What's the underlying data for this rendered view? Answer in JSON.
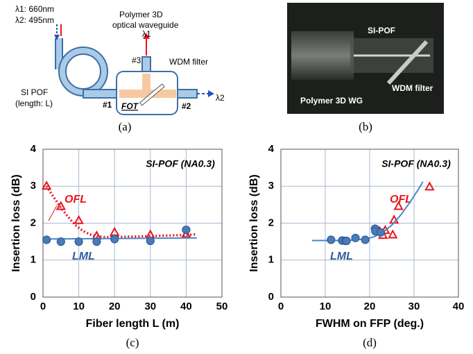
{
  "panels": {
    "a": {
      "label": "(a)",
      "wavelength1": "λ1: 660nm",
      "wavelength2": "λ2: 495nm",
      "waveguide_line1": "Polymer 3D",
      "waveguide_line2": "optical waveguide",
      "port3": "#3",
      "output1": "λ1",
      "wdm": "WDM filter",
      "pof": "SI POF",
      "length": "(length: L)",
      "port1": "#1",
      "fot": "FOT",
      "port2": "#2",
      "output2": "λ2"
    },
    "b": {
      "label": "(b)",
      "pof": "SI-POF",
      "wdm": "WDM filter",
      "wg": "Polymer 3D WG"
    }
  },
  "chart_data": [
    {
      "type": "scatter",
      "panel_label": "(c)",
      "annotation": "SI-POF (NA0.3)",
      "xlabel": "Fiber length  L (m)",
      "ylabel": "Insertion loss (dB)",
      "xlim": [
        0,
        50
      ],
      "xticks": [
        0,
        10,
        20,
        30,
        40,
        50
      ],
      "ylim": [
        0,
        4
      ],
      "yticks": [
        0,
        1,
        2,
        3,
        4
      ],
      "grid": true,
      "series": [
        {
          "name": "OFL",
          "color": "#e8141c",
          "marker": "triangle",
          "x": [
            1,
            5,
            10,
            15,
            20,
            30,
            40
          ],
          "values": [
            3.0,
            2.45,
            2.07,
            1.65,
            1.75,
            1.68,
            1.7
          ],
          "fit": {
            "style": "dotted",
            "x": [
              1,
              3,
              5,
              7,
              9,
              11,
              13,
              15,
              18,
              22,
              30,
              40,
              43
            ],
            "values": [
              3.0,
              2.7,
              2.42,
              2.17,
              1.95,
              1.8,
              1.7,
              1.64,
              1.62,
              1.63,
              1.65,
              1.68,
              1.7
            ]
          }
        },
        {
          "name": "LML",
          "color": "#2e5f9a",
          "marker": "circle",
          "x": [
            1,
            5,
            10,
            15,
            20,
            30,
            40
          ],
          "values": [
            1.55,
            1.5,
            1.5,
            1.5,
            1.57,
            1.52,
            1.82
          ],
          "fit": {
            "style": "solid",
            "x": [
              0,
              43
            ],
            "values": [
              1.57,
              1.6
            ]
          }
        }
      ]
    },
    {
      "type": "scatter",
      "panel_label": "(d)",
      "annotation": "SI-POF (NA0.3)",
      "xlabel": "FWHM on FFP (deg.)",
      "ylabel": "Insertion loss (dB)",
      "xlim": [
        0,
        40
      ],
      "xticks": [
        0,
        10,
        20,
        30,
        40
      ],
      "ylim": [
        0,
        4
      ],
      "yticks": [
        0,
        1,
        2,
        3,
        4
      ],
      "grid": true,
      "series": [
        {
          "name": "OFL",
          "color": "#e8141c",
          "marker": "triangle",
          "x": [
            22.2,
            23,
            23.5,
            25.2,
            25.5,
            26.5,
            33.5
          ],
          "values": [
            1.78,
            1.67,
            1.8,
            1.68,
            2.08,
            2.45,
            2.98
          ]
        },
        {
          "name": "LML",
          "color": "#2e5f9a",
          "marker": "circle",
          "x": [
            11.3,
            13.8,
            14.5,
            14.8,
            16.8,
            19,
            21.2,
            21.3,
            22.5
          ],
          "values": [
            1.55,
            1.53,
            1.52,
            1.52,
            1.6,
            1.55,
            1.85,
            1.78,
            1.75
          ],
          "fit": {
            "style": "solid",
            "x": [
              7,
              10,
              13,
              16,
              19,
              21,
              23,
              25,
              27,
              29,
              31,
              32
            ],
            "values": [
              1.53,
              1.53,
              1.53,
              1.54,
              1.57,
              1.63,
              1.75,
              1.95,
              2.22,
              2.55,
              2.92,
              3.12
            ]
          }
        }
      ]
    }
  ]
}
